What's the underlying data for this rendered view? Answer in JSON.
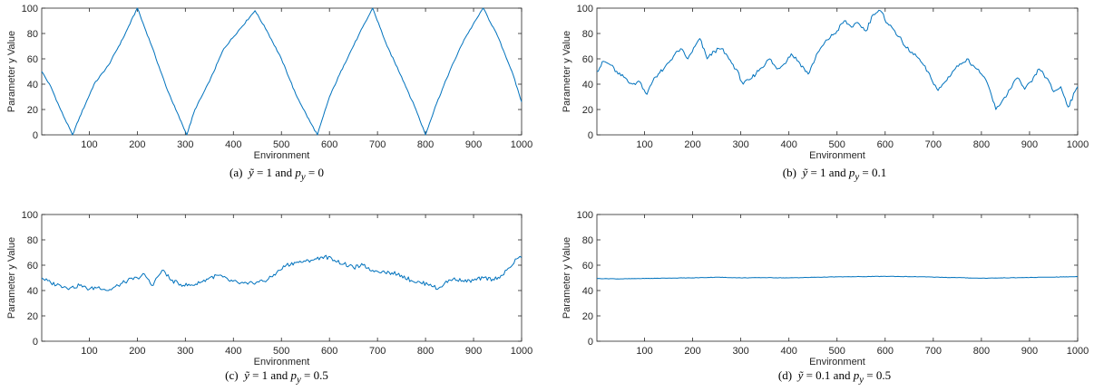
{
  "chart_data": [
    {
      "type": "line",
      "caption": "(a)  ỹ = 1 and p_y = 0",
      "xlabel": "Environment",
      "ylabel": "Parameter y Value",
      "xlim": [
        1,
        1000
      ],
      "ylim": [
        0,
        100
      ],
      "xticks": [
        100,
        200,
        300,
        400,
        500,
        600,
        700,
        800,
        900,
        1000
      ],
      "yticks": [
        0,
        20,
        40,
        60,
        80,
        100
      ],
      "series": [
        {
          "color": "#0072BD",
          "x": [
            1,
            20,
            40,
            65,
            80,
            110,
            140,
            170,
            200,
            230,
            260,
            280,
            303,
            320,
            350,
            380,
            410,
            445,
            470,
            500,
            530,
            560,
            575,
            600,
            630,
            660,
            690,
            720,
            750,
            780,
            800,
            820,
            850,
            880,
            920,
            950,
            980,
            1000
          ],
          "y": [
            50,
            38,
            20,
            0,
            14,
            40,
            55,
            76,
            100,
            70,
            38,
            20,
            0,
            20,
            42,
            68,
            82,
            98,
            82,
            60,
            32,
            10,
            0,
            30,
            55,
            78,
            100,
            70,
            46,
            20,
            0,
            22,
            50,
            75,
            100,
            78,
            50,
            26
          ]
        }
      ]
    },
    {
      "type": "line",
      "caption": "(b)  ỹ = 1 and p_y = 0.1",
      "xlabel": "Environment",
      "ylabel": "Parameter y Value",
      "xlim": [
        1,
        1000
      ],
      "ylim": [
        0,
        100
      ],
      "xticks": [
        100,
        200,
        300,
        400,
        500,
        600,
        700,
        800,
        900,
        1000
      ],
      "yticks": [
        0,
        20,
        40,
        60,
        80,
        100
      ],
      "series": [
        {
          "color": "#0072BD",
          "x": [
            1,
            15,
            30,
            45,
            60,
            75,
            90,
            105,
            120,
            140,
            160,
            175,
            190,
            205,
            215,
            230,
            245,
            260,
            275,
            290,
            305,
            320,
            340,
            360,
            375,
            390,
            405,
            420,
            440,
            460,
            480,
            500,
            515,
            530,
            545,
            560,
            575,
            590,
            605,
            620,
            635,
            650,
            665,
            680,
            695,
            710,
            725,
            740,
            755,
            770,
            785,
            800,
            815,
            830,
            845,
            860,
            875,
            890,
            905,
            920,
            935,
            950,
            965,
            980,
            1000
          ],
          "y": [
            50,
            58,
            55,
            48,
            45,
            40,
            42,
            32,
            45,
            52,
            62,
            68,
            60,
            70,
            76,
            60,
            66,
            68,
            60,
            52,
            40,
            44,
            52,
            60,
            52,
            56,
            64,
            58,
            48,
            65,
            75,
            82,
            90,
            85,
            88,
            82,
            95,
            98,
            88,
            82,
            74,
            66,
            62,
            55,
            45,
            35,
            42,
            50,
            56,
            60,
            54,
            48,
            38,
            20,
            28,
            36,
            45,
            36,
            42,
            52,
            45,
            34,
            38,
            22,
            38
          ]
        }
      ]
    },
    {
      "type": "line",
      "caption": "(c)  ỹ = 1 and p_y = 0.5",
      "xlabel": "Environment",
      "ylabel": "Parameter y Value",
      "xlim": [
        1,
        1000
      ],
      "ylim": [
        0,
        100
      ],
      "xticks": [
        100,
        200,
        300,
        400,
        500,
        600,
        700,
        800,
        900,
        1000
      ],
      "yticks": [
        0,
        20,
        40,
        60,
        80,
        100
      ],
      "series": [
        {
          "color": "#0072BD",
          "x": [
            1,
            20,
            40,
            60,
            80,
            100,
            120,
            140,
            160,
            180,
            200,
            215,
            230,
            245,
            255,
            270,
            290,
            310,
            330,
            350,
            370,
            390,
            410,
            430,
            450,
            470,
            490,
            510,
            530,
            550,
            570,
            590,
            610,
            630,
            650,
            670,
            690,
            710,
            730,
            750,
            770,
            790,
            810,
            825,
            840,
            860,
            880,
            900,
            920,
            940,
            960,
            975,
            990,
            1000
          ],
          "y": [
            50,
            46,
            44,
            42,
            44,
            41,
            43,
            40,
            44,
            48,
            50,
            53,
            44,
            52,
            56,
            48,
            45,
            44,
            46,
            50,
            52,
            48,
            46,
            45,
            47,
            48,
            54,
            60,
            62,
            63,
            65,
            67,
            64,
            61,
            58,
            60,
            56,
            55,
            54,
            52,
            48,
            46,
            45,
            41,
            46,
            50,
            47,
            48,
            50,
            49,
            52,
            58,
            65,
            66
          ]
        }
      ]
    },
    {
      "type": "line",
      "caption": "(d)  ỹ = 0.1 and p_y = 0.5",
      "xlabel": "Environment",
      "ylabel": "Parameter y Value",
      "xlim": [
        1,
        1000
      ],
      "ylim": [
        0,
        100
      ],
      "xticks": [
        100,
        200,
        300,
        400,
        500,
        600,
        700,
        800,
        900,
        1000
      ],
      "yticks": [
        0,
        20,
        40,
        60,
        80,
        100
      ],
      "series": [
        {
          "color": "#0072BD",
          "x": [
            1,
            50,
            100,
            150,
            200,
            250,
            300,
            350,
            400,
            450,
            500,
            550,
            600,
            650,
            700,
            750,
            800,
            850,
            900,
            950,
            1000
          ],
          "y": [
            49.5,
            49.2,
            49.5,
            49.8,
            50.0,
            50.5,
            50.0,
            50.2,
            50.0,
            50.4,
            50.8,
            51.0,
            51.2,
            51.0,
            50.6,
            50.2,
            49.7,
            50.0,
            50.3,
            50.6,
            51.0
          ]
        }
      ]
    }
  ]
}
